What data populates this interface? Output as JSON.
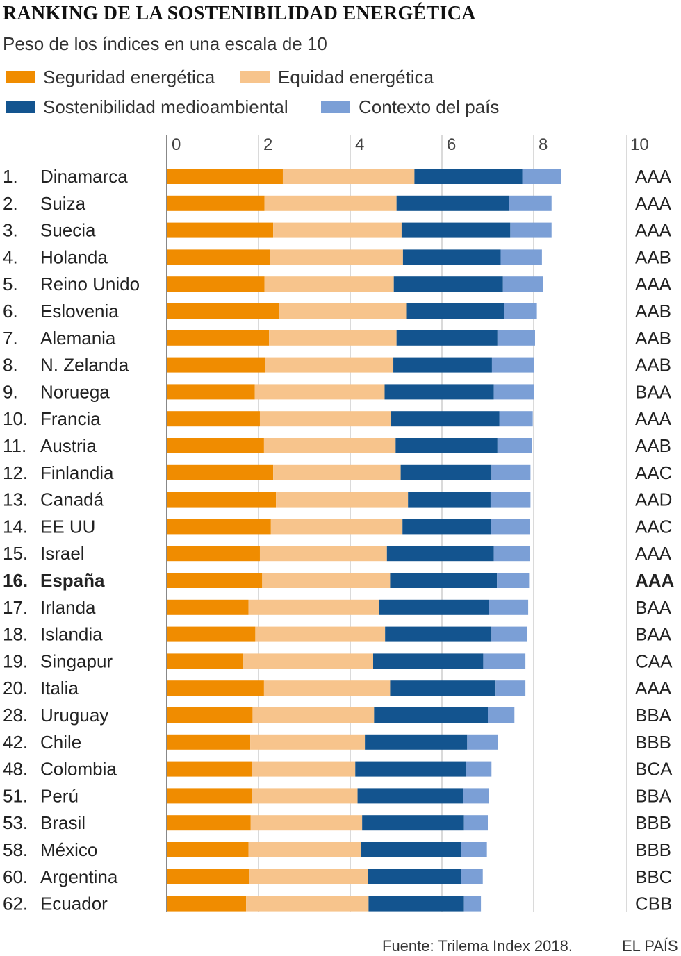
{
  "header": {
    "title": "RANKING DE LA SOSTENIBILIDAD ENERGÉTICA",
    "subtitle": "Peso de los índices en una escala de 10"
  },
  "legend": [
    {
      "label": "Seguridad energética",
      "color": "#f08c00"
    },
    {
      "label": "Equidad energética",
      "color": "#f7c48c"
    },
    {
      "label": "Sostenibilidad medioambiental",
      "color": "#13548f"
    },
    {
      "label": "Contexto del país",
      "color": "#7b9fd6"
    }
  ],
  "footer": {
    "source": "Fuente: Trilema Index 2018.",
    "brand": "EL PAÍS"
  },
  "chart_data": {
    "type": "bar",
    "orientation": "horizontal",
    "stacked": true,
    "title": "RANKING DE LA SOSTENIBILIDAD ENERGÉTICA",
    "subtitle": "Peso de los índices en una escala de 10",
    "xlim": [
      0,
      10
    ],
    "xticks": [
      0,
      2,
      4,
      6,
      8,
      10
    ],
    "highlight": "España",
    "ranks": [
      "1.",
      "2.",
      "3.",
      "4.",
      "5.",
      "6.",
      "7.",
      "8.",
      "9.",
      "10.",
      "11.",
      "12.",
      "13.",
      "14.",
      "15.",
      "16.",
      "17.",
      "18.",
      "19.",
      "20.",
      "28.",
      "42.",
      "48.",
      "51.",
      "53.",
      "58.",
      "60.",
      "62."
    ],
    "categories": [
      "Dinamarca",
      "Suiza",
      "Suecia",
      "Holanda",
      "Reino Unido",
      "Eslovenia",
      "Alemania",
      "N. Zelanda",
      "Noruega",
      "Francia",
      "Austria",
      "Finlandia",
      "Canadá",
      "EE UU",
      "Israel",
      "España",
      "Irlanda",
      "Islandia",
      "Singapur",
      "Italia",
      "Uruguay",
      "Chile",
      "Colombia",
      "Perú",
      "Brasil",
      "México",
      "Argentina",
      "Ecuador"
    ],
    "ratings": [
      "AAA",
      "AAA",
      "AAA",
      "AAB",
      "AAA",
      "AAB",
      "AAB",
      "AAB",
      "BAA",
      "AAA",
      "AAB",
      "AAC",
      "AAD",
      "AAC",
      "AAA",
      "AAA",
      "BAA",
      "BAA",
      "CAA",
      "AAA",
      "BBA",
      "BBB",
      "BCA",
      "BBA",
      "BBB",
      "BBB",
      "BBC",
      "CBB"
    ],
    "series": [
      {
        "name": "Seguridad energética",
        "color": "#f08c00",
        "values": [
          2.53,
          2.13,
          2.32,
          2.25,
          2.13,
          2.45,
          2.23,
          2.15,
          1.92,
          2.03,
          2.12,
          2.32,
          2.38,
          2.27,
          2.03,
          2.08,
          1.78,
          1.93,
          1.67,
          2.12,
          1.87,
          1.82,
          1.86,
          1.86,
          1.83,
          1.78,
          1.8,
          1.73
        ]
      },
      {
        "name": "Equidad energética",
        "color": "#f7c48c",
        "values": [
          2.87,
          2.88,
          2.8,
          2.9,
          2.82,
          2.77,
          2.78,
          2.79,
          2.83,
          2.85,
          2.87,
          2.78,
          2.88,
          2.87,
          2.77,
          2.79,
          2.85,
          2.83,
          2.83,
          2.75,
          2.65,
          2.5,
          2.25,
          2.3,
          2.43,
          2.45,
          2.58,
          2.67
        ]
      },
      {
        "name": "Sostenibilidad medioambiental",
        "color": "#13548f",
        "values": [
          2.35,
          2.45,
          2.37,
          2.13,
          2.38,
          2.13,
          2.2,
          2.15,
          2.38,
          2.37,
          2.22,
          1.98,
          1.8,
          1.93,
          2.33,
          2.33,
          2.4,
          2.32,
          2.4,
          2.3,
          2.48,
          2.23,
          2.42,
          2.3,
          2.22,
          2.18,
          2.03,
          2.08
        ]
      },
      {
        "name": "Contexto del país",
        "color": "#7b9fd6",
        "values": [
          0.85,
          0.93,
          0.9,
          0.9,
          0.87,
          0.72,
          0.82,
          0.92,
          0.88,
          0.73,
          0.75,
          0.85,
          0.87,
          0.85,
          0.78,
          0.7,
          0.85,
          0.78,
          0.92,
          0.65,
          0.58,
          0.67,
          0.55,
          0.57,
          0.52,
          0.57,
          0.48,
          0.37
        ]
      }
    ]
  }
}
